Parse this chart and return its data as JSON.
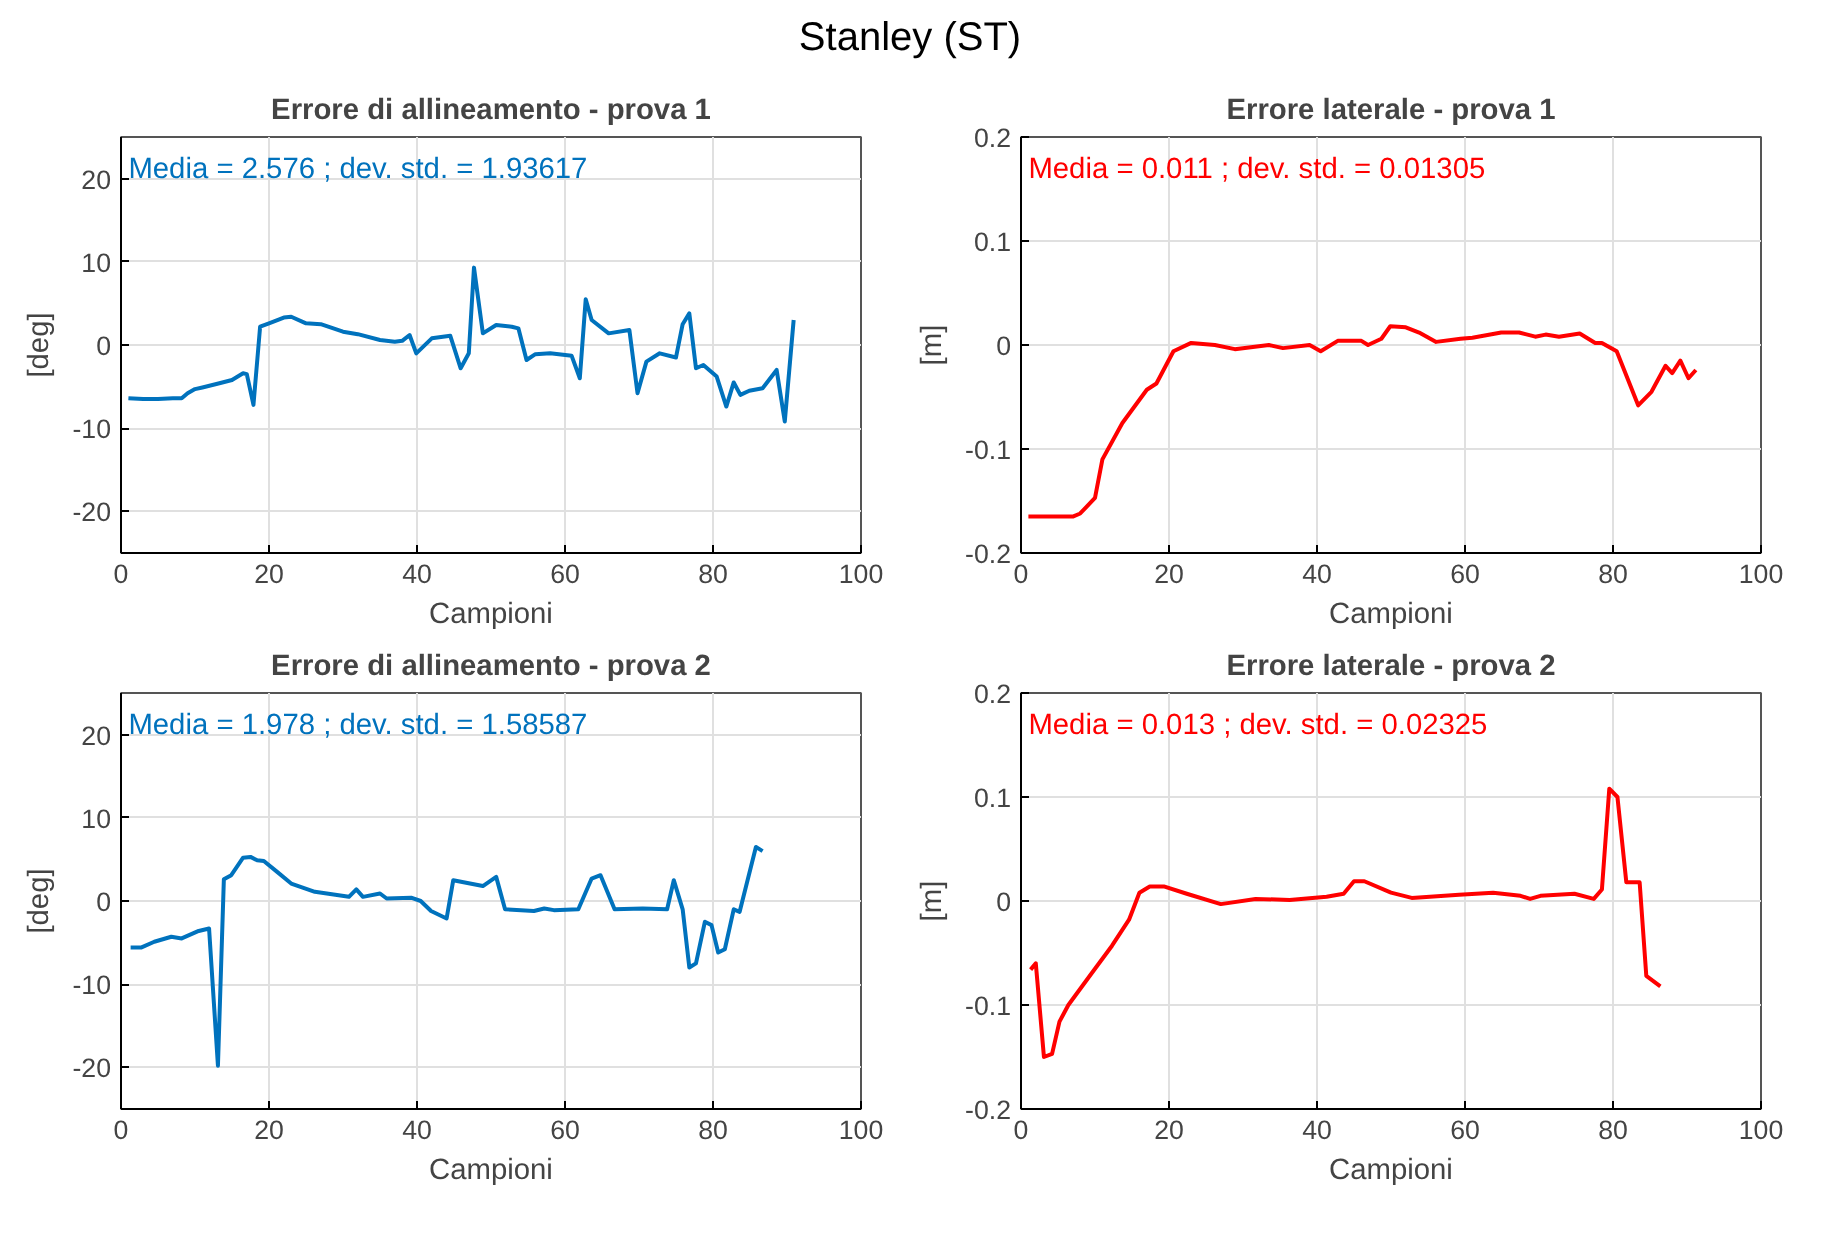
{
  "chart_data": [
    {
      "type": "line",
      "title": "Errore di allineamento - prova 1",
      "subtitle": "Media = 2.576 ; dev. std. = 1.93617",
      "xlabel": "Campioni",
      "ylabel": "[deg]",
      "annotations": [
        "Stanley (ST)"
      ],
      "xlim": [
        0,
        100
      ],
      "xticks": [
        0,
        20,
        40,
        60,
        80,
        100
      ],
      "ylim": [
        -25,
        25
      ],
      "yticks": [
        -20,
        -10,
        0,
        10,
        20
      ],
      "grid": true,
      "series": [
        {
          "color": "#0072bd",
          "x": [
            1,
            3,
            5,
            7,
            8.2,
            9,
            10,
            11,
            13.3,
            15,
            16.5,
            17,
            17.9,
            18.8,
            20,
            22,
            23,
            25,
            27,
            30,
            32,
            35,
            37,
            38,
            39,
            39.9,
            42,
            44.5,
            45.9,
            47,
            47.7,
            48.9,
            50.7,
            52.8,
            53.7,
            54.8,
            56,
            58,
            60.9,
            62,
            62.8,
            63.6,
            65.9,
            68.7,
            69.8,
            71,
            72.8,
            75,
            75.9,
            76.8,
            77.7,
            78.7,
            80.5,
            81.8,
            82.8,
            83.7,
            84.9,
            86.7,
            88.6,
            89.7,
            90.9
          ],
          "values": [
            -6.4,
            -6.5,
            -6.5,
            -6.4,
            -6.4,
            -5.8,
            -5.3,
            -5.1,
            -4.6,
            -4.2,
            -3.4,
            -3.5,
            -7.2,
            2.2,
            2.6,
            3.3,
            3.4,
            2.6,
            2.5,
            1.6,
            1.3,
            0.6,
            0.4,
            0.5,
            1.2,
            -1,
            0.8,
            1.1,
            -2.8,
            -1,
            9.3,
            1.4,
            2.4,
            2.2,
            2,
            -1.8,
            -1.1,
            -1.0,
            -1.3,
            -4,
            5.5,
            3,
            1.4,
            1.8,
            -5.8,
            -2,
            -1,
            -1.5,
            2.5,
            3.8,
            -2.8,
            -2.4,
            -3.8,
            -7.4,
            -4.5,
            -6,
            -5.5,
            -5.2,
            -3,
            -9.2,
            3
          ]
        }
      ]
    },
    {
      "type": "line",
      "title": "Errore laterale - prova 1",
      "subtitle": "Media = 0.011 ; dev. std. = 0.01305",
      "xlabel": "Campioni",
      "ylabel": "[m]",
      "xlim": [
        0,
        100
      ],
      "xticks": [
        0,
        20,
        40,
        60,
        80,
        100
      ],
      "ylim": [
        -0.2,
        0.2
      ],
      "yticks": [
        -0.2,
        -0.1,
        0,
        0.1,
        0.2
      ],
      "grid": true,
      "series": [
        {
          "color": "#ff0000",
          "x": [
            1,
            3,
            5,
            7,
            8,
            10,
            11,
            13.7,
            17,
            18.3,
            20.6,
            23,
            26.2,
            28.9,
            33.5,
            35.4,
            39,
            40.5,
            42.8,
            46,
            46.9,
            48.7,
            49.9,
            52,
            53.8,
            56.1,
            59.4,
            61,
            64.9,
            67.3,
            69.5,
            70.9,
            72.7,
            75.5,
            77.6,
            78.5,
            80.5,
            83.4,
            85.2,
            87.1,
            88,
            89.1,
            90.2,
            91.2
          ],
          "values": [
            -0.165,
            -0.165,
            -0.165,
            -0.165,
            -0.162,
            -0.147,
            -0.11,
            -0.075,
            -0.043,
            -0.037,
            -0.006,
            0.002,
            0,
            -0.004,
            0,
            -0.003,
            0,
            -0.006,
            0.004,
            0.004,
            0,
            0.006,
            0.018,
            0.017,
            0.012,
            0.003,
            0.006,
            0.007,
            0.012,
            0.012,
            0.008,
            0.01,
            0.008,
            0.011,
            0.002,
            0.002,
            -0.006,
            -0.058,
            -0.045,
            -0.02,
            -0.027,
            -0.015,
            -0.032,
            -0.024
          ]
        }
      ]
    },
    {
      "type": "line",
      "title": "Errore di allineamento - prova 2",
      "subtitle": "Media = 1.978 ; dev. std. = 1.58587",
      "xlabel": "Campioni",
      "ylabel": "[deg]",
      "xlim": [
        0,
        100
      ],
      "xticks": [
        0,
        20,
        40,
        60,
        80,
        100
      ],
      "ylim": [
        -25,
        25
      ],
      "yticks": [
        -20,
        -10,
        0,
        10,
        20
      ],
      "grid": true,
      "series": [
        {
          "color": "#0072bd",
          "x": [
            1.3,
            2.7,
            4.5,
            6.8,
            8.2,
            10.5,
            11.9,
            13.1,
            13.9,
            14.9,
            16.5,
            17.5,
            18.4,
            19.3,
            21.1,
            23,
            26.2,
            30.8,
            31.8,
            32.7,
            35,
            35.9,
            39.2,
            40.5,
            41.9,
            44,
            44.9,
            48.9,
            50.7,
            51.9,
            55.8,
            57.2,
            58.5,
            61.8,
            63.6,
            64.8,
            66.7,
            70.5,
            73.8,
            74.7,
            75.9,
            76.8,
            77.7,
            78.9,
            79.8,
            80.7,
            81.6,
            82.8,
            83.6,
            85.8,
            86.7
          ],
          "values": [
            -5.6,
            -5.6,
            -4.9,
            -4.3,
            -4.5,
            -3.6,
            -3.3,
            -19.8,
            2.6,
            3.1,
            5.2,
            5.3,
            4.9,
            4.8,
            3.5,
            2.1,
            1.1,
            0.5,
            1.4,
            0.5,
            0.9,
            0.3,
            0.4,
            0,
            -1.2,
            -2.1,
            2.5,
            1.8,
            2.9,
            -1,
            -1.2,
            -0.9,
            -1.1,
            -1,
            2.7,
            3.1,
            -1,
            -0.9,
            -1,
            2.5,
            -1,
            -8,
            -7.5,
            -2.5,
            -2.9,
            -6.2,
            -5.8,
            -1,
            -1.3,
            6.5,
            6
          ]
        }
      ]
    },
    {
      "type": "line",
      "title": "Errore laterale - prova 2",
      "subtitle": "Media = 0.013 ; dev. std. = 0.02325",
      "xlabel": "Campioni",
      "ylabel": "[m]",
      "xlim": [
        0,
        100
      ],
      "xticks": [
        0,
        20,
        40,
        60,
        80,
        100
      ],
      "ylim": [
        -0.2,
        0.2
      ],
      "yticks": [
        -0.2,
        -0.1,
        0,
        0.1,
        0.2
      ],
      "grid": true,
      "series": [
        {
          "color": "#ff0000",
          "x": [
            1.3,
            2,
            3.1,
            4.2,
            5.2,
            6.4,
            9.6,
            12.3,
            14.6,
            16,
            17.4,
            19.3,
            22.4,
            27,
            31.7,
            36.3,
            41.3,
            43.6,
            45,
            46.4,
            50,
            52.8,
            59.2,
            63.8,
            67.5,
            68.8,
            70.2,
            74.8,
            77.4,
            78.5,
            79.5,
            80.6,
            81.8,
            83.6,
            84.5,
            86.4
          ],
          "values": [
            -0.066,
            -0.06,
            -0.15,
            -0.147,
            -0.116,
            -0.1,
            -0.069,
            -0.043,
            -0.018,
            0.008,
            0.014,
            0.014,
            0.007,
            -0.003,
            0.002,
            0.001,
            0.004,
            0.007,
            0.019,
            0.019,
            0.008,
            0.003,
            0.006,
            0.008,
            0.005,
            0.002,
            0.005,
            0.007,
            0.002,
            0.011,
            0.108,
            0.1,
            0.018,
            0.018,
            -0.072,
            -0.082
          ]
        }
      ]
    }
  ]
}
